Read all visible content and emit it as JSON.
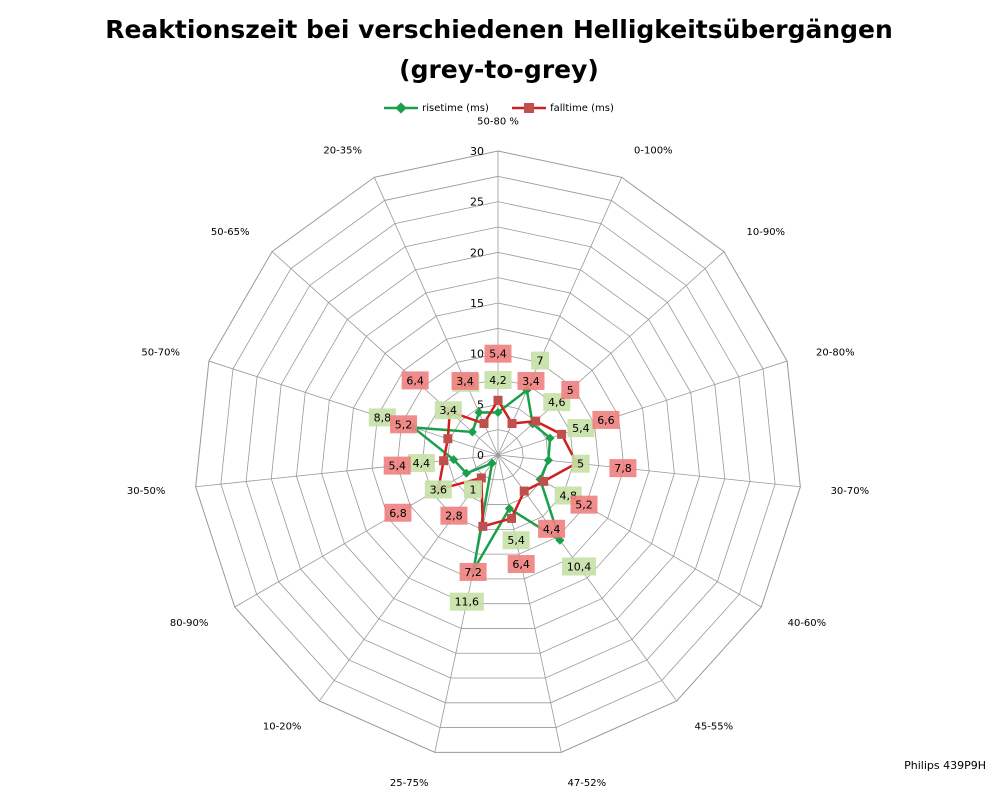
{
  "title_line1": "Reaktionszeit bei verschiedenen Helligkeitsübergängen",
  "title_line2": "(grey-to-grey)",
  "legend": {
    "rise_label": "risetime (ms)",
    "fall_label": "falltime (ms)"
  },
  "footer": "Philips 439P9H",
  "colors": {
    "rise": "#1aa04b",
    "fall": "#d11f1f",
    "rise_box": "#c5e0a5",
    "fall_box": "#f08080",
    "fall_box_dark": "#e0704a",
    "grid": "#999999"
  },
  "chart_data": {
    "type": "radar",
    "title": "Reaktionszeit bei verschiedenen Helligkeitsübergängen (grey-to-grey)",
    "categories": [
      "50-80 %",
      "0-100%",
      "10-90%",
      "20-80%",
      "30-70%",
      "40-60%",
      "45-55%",
      "47-52%",
      "25-75%",
      "10-20%",
      "80-90%",
      "30-50%",
      "50-70%",
      "50-65%",
      "20-35%"
    ],
    "rlim": [
      0,
      30
    ],
    "ticks": [
      0,
      5,
      10,
      15,
      20,
      25,
      30
    ],
    "grid": true,
    "legend_position": "top",
    "series": [
      {
        "name": "risetime (ms)",
        "values": [
          4.2,
          7,
          4.6,
          5.4,
          5,
          4.8,
          10.4,
          5.4,
          11.6,
          1,
          3.6,
          4.4,
          8.8,
          3.4,
          4.6
        ],
        "labels": [
          "4,2",
          "7",
          "4,6",
          "5,4",
          "5",
          "4,8",
          "10,4",
          "5,4",
          "11,6",
          "1",
          "3,6",
          "4,4",
          "8,8",
          "3,4",
          "4,6"
        ]
      },
      {
        "name": "falltime (ms)",
        "values": [
          5.4,
          3.4,
          5,
          6.6,
          7.8,
          5.2,
          4.4,
          6.4,
          7.2,
          2.8,
          6.8,
          5.4,
          5.2,
          6.4,
          3.4
        ],
        "labels": [
          "5,4",
          "3,4",
          "5",
          "6,6",
          "7,8",
          "5,2",
          "4,4",
          "6,4",
          "7,2",
          "2,8",
          "6,8",
          "5,4",
          "5,2",
          "6,4",
          "3,4"
        ]
      }
    ]
  }
}
